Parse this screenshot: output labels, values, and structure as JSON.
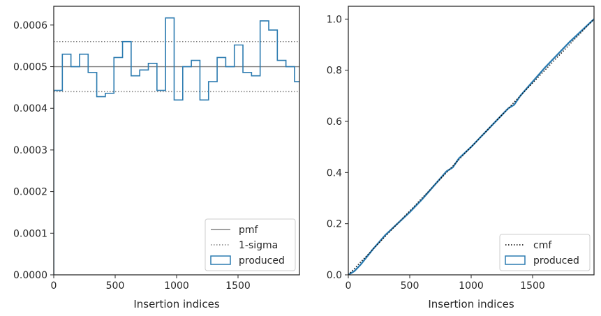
{
  "colors": {
    "produced": "#2c7bb0",
    "pmf": "#808080",
    "sigma": "#808080",
    "cmf": "#000000",
    "axes": "#262626"
  },
  "chart_data": [
    {
      "type": "line",
      "subtype": "step-histogram",
      "xlabel": "Insertion indices",
      "ylabel": "",
      "xlim": [
        0,
        2000
      ],
      "ylim": [
        0,
        0.000645
      ],
      "xticks": [
        0,
        500,
        1000,
        1500
      ],
      "xtick_labels": [
        "0",
        "500",
        "1000",
        "1500"
      ],
      "yticks": [
        0,
        0.0001,
        0.0002,
        0.0003,
        0.0004,
        0.0005,
        0.0006
      ],
      "ytick_labels": [
        "0.0000",
        "0.0001",
        "0.0002",
        "0.0003",
        "0.0004",
        "0.0005",
        "0.0006"
      ],
      "legend_position": "bottom-right",
      "legend": [
        {
          "label": "pmf",
          "style": "solid-line",
          "color": "#808080"
        },
        {
          "label": "1-sigma",
          "style": "dotted-line",
          "color": "#808080"
        },
        {
          "label": "produced",
          "style": "box",
          "color": "#2c7bb0"
        }
      ],
      "pmf": 0.0005,
      "sigma_band": [
        0.00044,
        0.00056
      ],
      "bin_edges": [
        0,
        70,
        140,
        210,
        280,
        350,
        420,
        490,
        560,
        630,
        700,
        770,
        840,
        910,
        980,
        1050,
        1120,
        1190,
        1260,
        1330,
        1400,
        1470,
        1540,
        1610,
        1680,
        1750,
        1820,
        1890,
        1960,
        2030
      ],
      "produced": [
        0.000443,
        0.00053,
        0.0005,
        0.00053,
        0.000486,
        0.000428,
        0.000436,
        0.000522,
        0.00056,
        0.000478,
        0.000492,
        0.000508,
        0.000443,
        0.000617,
        0.00042,
        0.0005,
        0.000515,
        0.00042,
        0.000464,
        0.000522,
        0.0005,
        0.000552,
        0.000486,
        0.000478,
        0.00061,
        0.000588,
        0.000515,
        0.0005,
        0.000464
      ]
    },
    {
      "type": "line",
      "subtype": "cumulative",
      "xlabel": "Insertion indices",
      "ylabel": "",
      "xlim": [
        0,
        2000
      ],
      "ylim": [
        0,
        1.05
      ],
      "xticks": [
        0,
        500,
        1000,
        1500
      ],
      "xtick_labels": [
        "0",
        "500",
        "1000",
        "1500"
      ],
      "yticks": [
        0,
        0.2,
        0.4,
        0.6,
        0.8,
        1.0
      ],
      "ytick_labels": [
        "0.0",
        "0.2",
        "0.4",
        "0.6",
        "0.8",
        "1.0"
      ],
      "legend_position": "bottom-right",
      "legend": [
        {
          "label": "cmf",
          "style": "dotted-line",
          "color": "#000000"
        },
        {
          "label": "produced",
          "style": "box",
          "color": "#2c7bb0"
        }
      ],
      "cmf": {
        "x": [
          0,
          2000
        ],
        "y": [
          0,
          1
        ]
      },
      "produced": {
        "x": [
          0,
          50,
          100,
          200,
          300,
          400,
          500,
          600,
          700,
          800,
          850,
          900,
          1000,
          1100,
          1200,
          1300,
          1350,
          1400,
          1500,
          1600,
          1700,
          1800,
          1900,
          2000
        ],
        "y": [
          0,
          0.015,
          0.04,
          0.1,
          0.155,
          0.2,
          0.245,
          0.295,
          0.35,
          0.405,
          0.42,
          0.455,
          0.5,
          0.55,
          0.6,
          0.65,
          0.665,
          0.7,
          0.755,
          0.81,
          0.86,
          0.91,
          0.955,
          1.0
        ]
      }
    }
  ]
}
